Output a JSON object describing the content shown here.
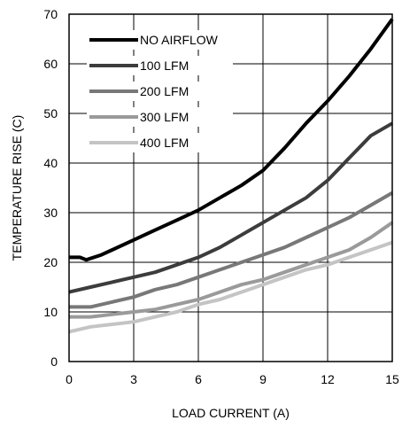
{
  "chart_data": {
    "type": "line",
    "title": "",
    "xlabel": "LOAD CURRENT (A)",
    "ylabel": "TEMPERATURE RISE (C)",
    "xlim": [
      0,
      15
    ],
    "ylim": [
      0,
      70
    ],
    "xticks": [
      0,
      3,
      6,
      9,
      12,
      15
    ],
    "yticks": [
      0,
      10,
      20,
      30,
      40,
      50,
      60,
      70
    ],
    "grid": true,
    "legend_position": "top-left",
    "series": [
      {
        "name": "NO AIRFLOW",
        "color": "#000000",
        "x": [
          0,
          0.5,
          0.8,
          1.5,
          2,
          3,
          4,
          5,
          6,
          7,
          8,
          9,
          10,
          11,
          12,
          13,
          14,
          15
        ],
        "y": [
          21,
          21,
          20.5,
          21.5,
          22.5,
          24.5,
          26.5,
          28.5,
          30.5,
          33,
          35.5,
          38.5,
          43,
          48,
          52.5,
          57.5,
          63,
          69
        ]
      },
      {
        "name": "100 LFM",
        "color": "#3c3c3c",
        "x": [
          0,
          1,
          2,
          3,
          4,
          5,
          6,
          7,
          8,
          9,
          10,
          11,
          12,
          13,
          14,
          15
        ],
        "y": [
          14,
          15,
          16,
          17,
          18,
          19.5,
          21,
          23,
          25.5,
          28,
          30.5,
          33,
          36.5,
          41,
          45.5,
          48
        ]
      },
      {
        "name": "200 LFM",
        "color": "#787878",
        "x": [
          0,
          1,
          2,
          3,
          4,
          5,
          6,
          7,
          8,
          9,
          10,
          11,
          12,
          13,
          14,
          15
        ],
        "y": [
          11,
          11,
          12,
          13,
          14.5,
          15.5,
          17,
          18.5,
          20,
          21.5,
          23,
          25,
          27,
          29,
          31.5,
          34
        ]
      },
      {
        "name": "300 LFM",
        "color": "#9a9a9a",
        "x": [
          0,
          1,
          2,
          3,
          4,
          5,
          6,
          7,
          8,
          9,
          10,
          11,
          12,
          13,
          14,
          15
        ],
        "y": [
          9,
          9,
          9.5,
          10,
          10.5,
          11.5,
          12.5,
          14,
          15.5,
          16.5,
          18,
          19.5,
          21,
          22.5,
          25,
          28
        ]
      },
      {
        "name": "400 LFM",
        "color": "#c4c4c4",
        "x": [
          0,
          1,
          2,
          3,
          4,
          5,
          6,
          7,
          8,
          9,
          10,
          11,
          12,
          13,
          14,
          15
        ],
        "y": [
          6,
          7,
          7.5,
          8,
          9,
          10,
          11.5,
          12.5,
          14,
          15.5,
          17,
          18.5,
          19.5,
          21,
          22.5,
          24
        ]
      }
    ]
  }
}
